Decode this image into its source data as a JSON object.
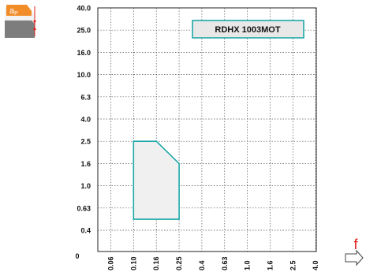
{
  "chart_data": {
    "type": "area",
    "title": "RDHX 1003MOT",
    "icon": "depth-of-cut-ap-icon",
    "icon_label": "aP",
    "y_axis_symbol": "aP",
    "x_axis_symbol": "f",
    "y_ticks": [
      "0.4",
      "0.63",
      "1.0",
      "1.6",
      "2.5",
      "4.0",
      "6.3",
      "10.0",
      "16.0",
      "25.0",
      "40.0"
    ],
    "x_ticks": [
      "0.06",
      "0.10",
      "0.16",
      "0.25",
      "0.4",
      "0.63",
      "1.0",
      "1.6",
      "2.5",
      "4.0"
    ],
    "origin_label": "0",
    "scale": "log",
    "grid": true,
    "region": {
      "name": "",
      "points": [
        {
          "f": 0.1,
          "ap": 0.5
        },
        {
          "f": 0.1,
          "ap": 2.5
        },
        {
          "f": 0.16,
          "ap": 2.5
        },
        {
          "f": 0.25,
          "ap": 1.6
        },
        {
          "f": 0.25,
          "ap": 0.5
        }
      ]
    },
    "colors": {
      "region_stroke": "#1fa8a8",
      "region_fill": "#f0f0f0",
      "icon_orange": "#f28c28",
      "icon_gray": "#7d7d7d",
      "arrow_red": "#e0201c",
      "label_box_fill": "#e8e8e8"
    }
  }
}
